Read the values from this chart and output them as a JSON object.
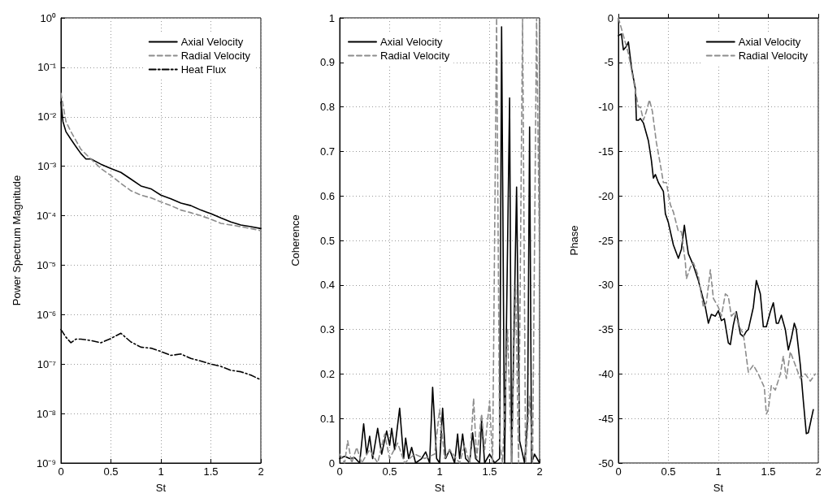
{
  "chart_data": [
    {
      "type": "line",
      "xlabel": "St",
      "ylabel": "Power Spectrum Magnitude",
      "log": "y",
      "grid": true,
      "legend": "top right",
      "marker": "none",
      "xlim": [
        0,
        2
      ],
      "xticks": [
        0,
        0.5,
        1,
        1.5,
        2
      ],
      "ylim": [
        1e-09,
        1
      ],
      "yticks": [
        {
          "value": 1e-09,
          "label": "10⁻⁹"
        },
        {
          "value": 1e-08,
          "label": "10⁻⁸"
        },
        {
          "value": 1e-07,
          "label": "10⁻⁷"
        },
        {
          "value": 1e-06,
          "label": "10⁻⁶"
        },
        {
          "value": 1e-05,
          "label": "10⁻⁵"
        },
        {
          "value": 0.0001,
          "label": "10⁻⁴"
        },
        {
          "value": 0.001,
          "label": "10⁻³"
        },
        {
          "value": 0.01,
          "label": "10⁻²"
        },
        {
          "value": 0.1,
          "label": "10⁻¹"
        },
        {
          "value": 1,
          "label": "10⁰"
        }
      ],
      "series": [
        {
          "name": "Axial Velocity",
          "color": "#000000",
          "line_style": "solid",
          "x": [
            0,
            0.02,
            0.05,
            0.1,
            0.15,
            0.2,
            0.25,
            0.3,
            0.4,
            0.5,
            0.6,
            0.7,
            0.8,
            0.9,
            1.0,
            1.1,
            1.2,
            1.3,
            1.4,
            1.5,
            1.6,
            1.7,
            1.8,
            1.9,
            2.0
          ],
          "values": [
            0.02,
            0.008,
            0.005,
            0.0035,
            0.0025,
            0.0018,
            0.0014,
            0.0014,
            0.0011,
            0.0009,
            0.00075,
            0.00055,
            0.0004,
            0.00035,
            0.00026,
            0.00022,
            0.00018,
            0.00016,
            0.00013,
            0.00011,
            9e-05,
            7.5e-05,
            6.5e-05,
            6e-05,
            5.5e-05
          ]
        },
        {
          "name": "Radial Velocity",
          "color": "#8c8c8c",
          "line_style": "dashed",
          "x": [
            0,
            0.05,
            0.1,
            0.2,
            0.3,
            0.4,
            0.5,
            0.6,
            0.7,
            0.8,
            0.9,
            1.0,
            1.1,
            1.2,
            1.3,
            1.4,
            1.5,
            1.6,
            1.7,
            1.8,
            1.9,
            2.0
          ],
          "values": [
            0.03,
            0.008,
            0.005,
            0.0022,
            0.0014,
            0.0009,
            0.00065,
            0.00045,
            0.00032,
            0.00026,
            0.00023,
            0.00019,
            0.00016,
            0.00013,
            0.000115,
            0.0001,
            8.5e-05,
            7e-05,
            6.5e-05,
            6e-05,
            5.5e-05,
            5e-05
          ]
        },
        {
          "name": "Heat Flux",
          "color": "#000000",
          "line_style": "dashdot",
          "x": [
            0,
            0.05,
            0.1,
            0.15,
            0.2,
            0.3,
            0.4,
            0.5,
            0.6,
            0.7,
            0.8,
            0.9,
            1.0,
            1.1,
            1.2,
            1.3,
            1.4,
            1.5,
            1.6,
            1.7,
            1.8,
            1.9,
            2.0
          ],
          "values": [
            5e-07,
            3.5e-07,
            2.7e-07,
            3.2e-07,
            3.2e-07,
            3e-07,
            2.7e-07,
            3.3e-07,
            4.2e-07,
            2.8e-07,
            2.2e-07,
            2.1e-07,
            1.8e-07,
            1.5e-07,
            1.6e-07,
            1.3e-07,
            1.15e-07,
            1e-07,
            9e-08,
            7.5e-08,
            7e-08,
            6e-08,
            4.8e-08
          ]
        }
      ]
    },
    {
      "type": "line",
      "xlabel": "St",
      "ylabel": "Coherence",
      "grid": true,
      "legend": "top left",
      "marker": "none",
      "xlim": [
        0,
        2
      ],
      "xticks": [
        0,
        0.5,
        1,
        1.5,
        2
      ],
      "ylim": [
        0,
        1
      ],
      "yticks": [
        0,
        0.1,
        0.2,
        0.3,
        0.4,
        0.5,
        0.6,
        0.7,
        0.8,
        0.9,
        1
      ],
      "series": [
        {
          "name": "Axial Velocity",
          "color": "#000000",
          "line_style": "solid",
          "x": [
            0,
            0.05,
            0.1,
            0.15,
            0.2,
            0.24,
            0.27,
            0.3,
            0.33,
            0.38,
            0.42,
            0.47,
            0.5,
            0.52,
            0.55,
            0.6,
            0.64,
            0.66,
            0.69,
            0.72,
            0.76,
            0.82,
            0.86,
            0.9,
            0.93,
            0.97,
            1.0,
            1.03,
            1.06,
            1.1,
            1.15,
            1.18,
            1.2,
            1.23,
            1.26,
            1.3,
            1.33,
            1.36,
            1.4,
            1.42,
            1.45,
            1.5,
            1.55,
            1.6,
            1.62,
            1.65,
            1.7,
            1.72,
            1.77,
            1.8,
            1.85,
            1.88,
            1.9,
            1.92,
            1.95,
            2.0
          ],
          "values": [
            0.01,
            0.015,
            0.01,
            0.012,
            0,
            0.088,
            0.02,
            0.06,
            0.01,
            0.078,
            0.02,
            0.072,
            0.04,
            0.078,
            0.03,
            0.123,
            0.01,
            0.056,
            0.01,
            0.035,
            0,
            0.01,
            0.025,
            0,
            0.17,
            0.01,
            0,
            0.123,
            0.01,
            0.03,
            0,
            0.065,
            0.01,
            0.065,
            0.01,
            0,
            0.068,
            0.01,
            0,
            0.098,
            0,
            0.02,
            0,
            0.01,
            0.98,
            0,
            0.82,
            0,
            0.62,
            0.05,
            0,
            0.1,
            0.755,
            0,
            0.02,
            0
          ]
        },
        {
          "name": "Radial Velocity",
          "color": "#8c8c8c",
          "line_style": "dashed",
          "x": [
            0,
            0.05,
            0.08,
            0.12,
            0.17,
            0.22,
            0.3,
            0.38,
            0.45,
            0.5,
            0.58,
            0.65,
            0.75,
            0.85,
            0.95,
            1.0,
            1.05,
            1.1,
            1.2,
            1.25,
            1.3,
            1.34,
            1.37,
            1.42,
            1.45,
            1.5,
            1.53,
            1.57,
            1.6,
            1.63,
            1.68,
            1.72,
            1.76,
            1.79,
            1.83,
            1.86,
            1.9,
            1.93,
            1.97,
            2.0
          ],
          "values": [
            0.02,
            0,
            0.05,
            0,
            0.035,
            0,
            0.03,
            0,
            0.065,
            0.01,
            0.045,
            0,
            0.02,
            0.01,
            0.02,
            0.12,
            0.01,
            0.03,
            0,
            0.04,
            0,
            0.145,
            0.01,
            0.11,
            0.03,
            0.14,
            0,
            1,
            0.05,
            0,
            0.3,
            0,
            0.4,
            0,
            1,
            0,
            0.15,
            0,
            1,
            0.45
          ]
        }
      ]
    },
    {
      "type": "line",
      "xlabel": "St",
      "ylabel": "Phase",
      "grid": true,
      "legend": "top right",
      "marker": "none",
      "xlim": [
        0,
        2
      ],
      "xticks": [
        0,
        0.5,
        1,
        1.5,
        2
      ],
      "ylim": [
        -50,
        0
      ],
      "yticks": [
        -50,
        -45,
        -40,
        -35,
        -30,
        -25,
        -20,
        -15,
        -10,
        -5,
        0
      ],
      "series": [
        {
          "name": "Axial Velocity",
          "color": "#000000",
          "line_style": "solid",
          "x": [
            0,
            0.03,
            0.05,
            0.08,
            0.1,
            0.13,
            0.17,
            0.18,
            0.2,
            0.22,
            0.25,
            0.3,
            0.33,
            0.35,
            0.37,
            0.4,
            0.45,
            0.47,
            0.5,
            0.55,
            0.6,
            0.63,
            0.66,
            0.68,
            0.7,
            0.75,
            0.8,
            0.83,
            0.87,
            0.9,
            0.93,
            0.97,
            1.0,
            1.03,
            1.06,
            1.1,
            1.12,
            1.15,
            1.18,
            1.22,
            1.25,
            1.28,
            1.3,
            1.35,
            1.38,
            1.42,
            1.45,
            1.48,
            1.52,
            1.55,
            1.58,
            1.6,
            1.63,
            1.67,
            1.7,
            1.73,
            1.76,
            1.78,
            1.82,
            1.85,
            1.88,
            1.9,
            1.95
          ],
          "values": [
            -2,
            -1.8,
            -3.6,
            -3.2,
            -2.7,
            -5.5,
            -8,
            -11.5,
            -11.5,
            -11.3,
            -11.8,
            -13.8,
            -16,
            -18,
            -17.6,
            -18.5,
            -19.5,
            -22,
            -23,
            -25.5,
            -27,
            -26,
            -23.3,
            -25,
            -26.5,
            -27.8,
            -29.5,
            -30.8,
            -32.5,
            -34.3,
            -33.3,
            -33.5,
            -32.9,
            -34,
            -33.8,
            -36.5,
            -36.7,
            -34.5,
            -33,
            -35.5,
            -35.8,
            -35.2,
            -35,
            -32.5,
            -29.5,
            -31,
            -34.7,
            -34.7,
            -33,
            -32,
            -34.3,
            -34.3,
            -33.4,
            -35,
            -37.3,
            -36,
            -34.3,
            -35,
            -39,
            -43,
            -46.7,
            -46.6,
            -44
          ]
        },
        {
          "name": "Radial Velocity",
          "color": "#8c8c8c",
          "line_style": "dashed",
          "x": [
            0,
            0.05,
            0.1,
            0.15,
            0.2,
            0.22,
            0.25,
            0.28,
            0.31,
            0.34,
            0.38,
            0.42,
            0.45,
            0.48,
            0.52,
            0.55,
            0.6,
            0.63,
            0.67,
            0.68,
            0.72,
            0.75,
            0.8,
            0.85,
            0.88,
            0.92,
            0.95,
            1.0,
            1.03,
            1.07,
            1.1,
            1.13,
            1.17,
            1.2,
            1.25,
            1.3,
            1.35,
            1.4,
            1.46,
            1.48,
            1.5,
            1.53,
            1.57,
            1.62,
            1.65,
            1.68,
            1.72,
            1.77,
            1.82,
            1.87,
            1.92,
            1.97
          ],
          "values": [
            0,
            -2,
            -4,
            -7,
            -10,
            -10,
            -11.5,
            -10.5,
            -9.2,
            -10.5,
            -14,
            -16.5,
            -18.5,
            -18.5,
            -21,
            -21.8,
            -24,
            -24,
            -27.5,
            -29.3,
            -28,
            -27.5,
            -29,
            -32.5,
            -32,
            -28.3,
            -31.5,
            -32.5,
            -33.5,
            -31,
            -31.3,
            -33.5,
            -33,
            -34.5,
            -35.5,
            -39.8,
            -39,
            -40,
            -41.5,
            -44.5,
            -44,
            -41.3,
            -41.8,
            -40,
            -38,
            -40.5,
            -37.5,
            -39,
            -40.5,
            -40,
            -40.8,
            -40
          ]
        }
      ]
    }
  ]
}
